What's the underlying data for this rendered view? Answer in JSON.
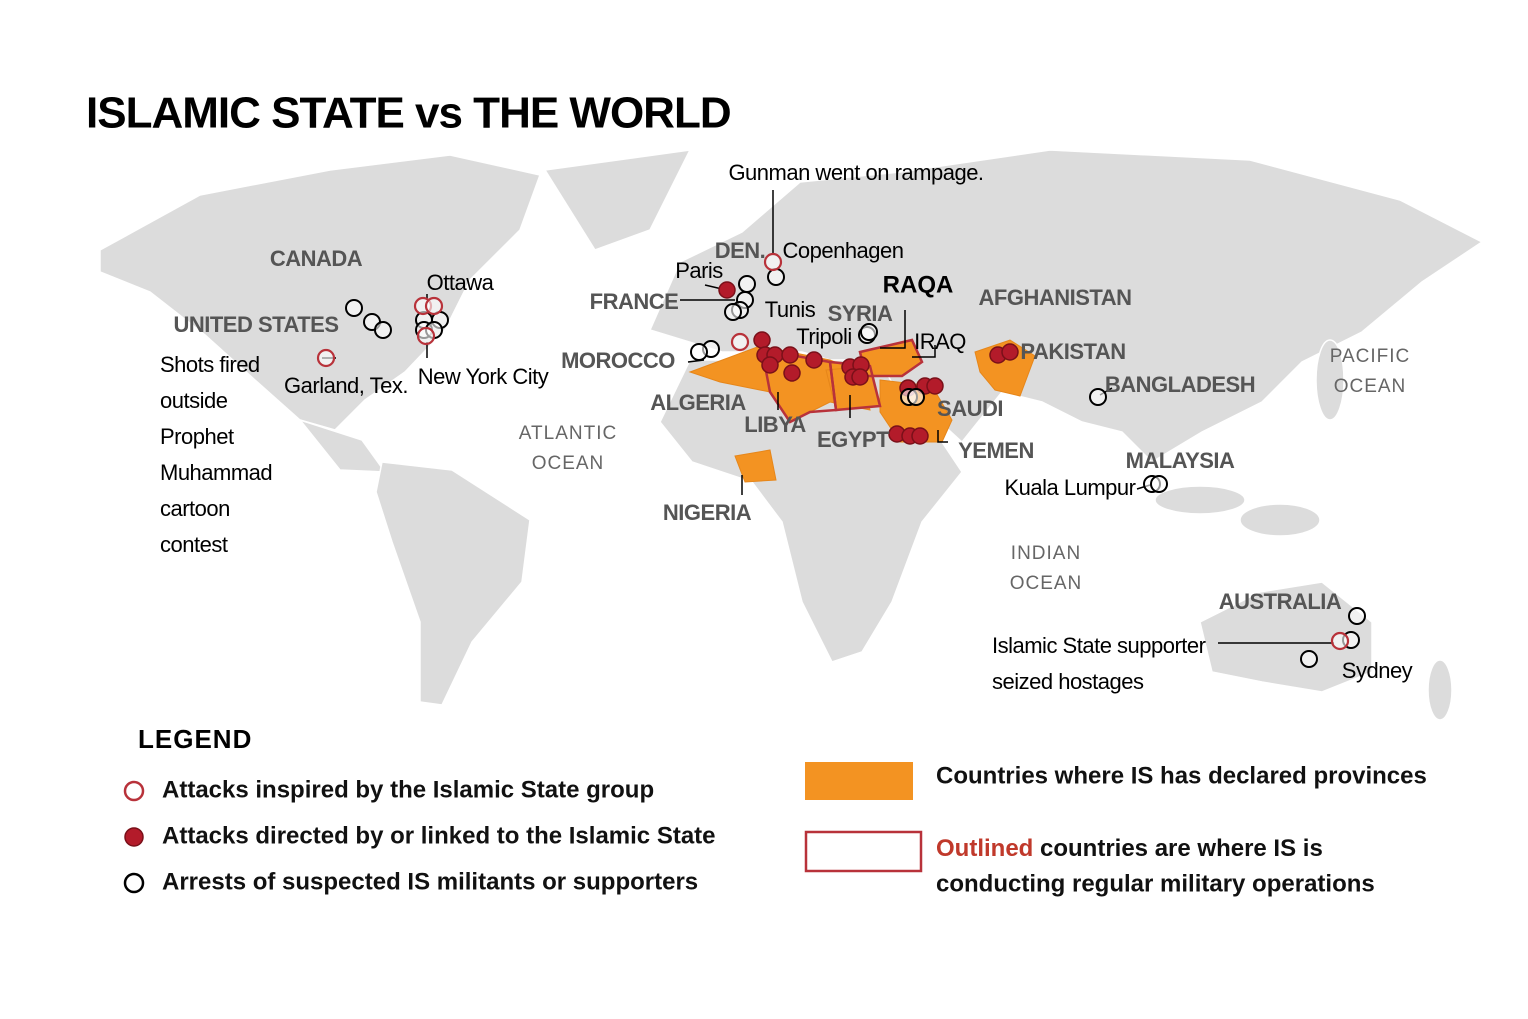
{
  "title": "ISLAMIC STATE vs THE WORLD",
  "map": {
    "countries": [
      "CANADA",
      "UNITED STATES",
      "DEN.",
      "FRANCE",
      "MOROCCO",
      "ALGERIA",
      "LIBYA",
      "EGYPT",
      "SYRIA",
      "SAUDI",
      "YEMEN",
      "AFGHANISTAN",
      "PAKISTAN",
      "BANGLADESH",
      "MALAYSIA",
      "NIGERIA",
      "AUSTRALIA"
    ],
    "capital": "RAQA",
    "cities": [
      "Ottawa",
      "New York City",
      "Garland, Tex.",
      "Paris",
      "Copenhagen",
      "Tunis",
      "Tripoli",
      "IRAQ",
      "Kuala Lumpur",
      "Sydney"
    ],
    "oceans": [
      [
        "ATLANTIC",
        "OCEAN"
      ],
      [
        "INDIAN",
        "OCEAN"
      ],
      [
        "PACIFIC",
        "OCEAN"
      ]
    ],
    "annotations": [
      [
        "Gunman went on rampage."
      ],
      [
        "Shots fired",
        "outside",
        "Prophet",
        "Muhammad",
        "cartoon",
        "contest"
      ],
      [
        "Islamic State supporter",
        "seized hostages"
      ]
    ]
  },
  "legend": {
    "title": "LEGEND",
    "markers": [
      "Attacks inspired by the Islamic State group",
      "Attacks directed by or linked to the Islamic State",
      "Arrests of suspected IS militants or supporters"
    ],
    "provinces": "Countries where IS has declared provinces",
    "operations": {
      "highlight": "Outlined",
      "lines": [
        "countries are where IS is",
        "conducting regular military operations"
      ]
    }
  }
}
